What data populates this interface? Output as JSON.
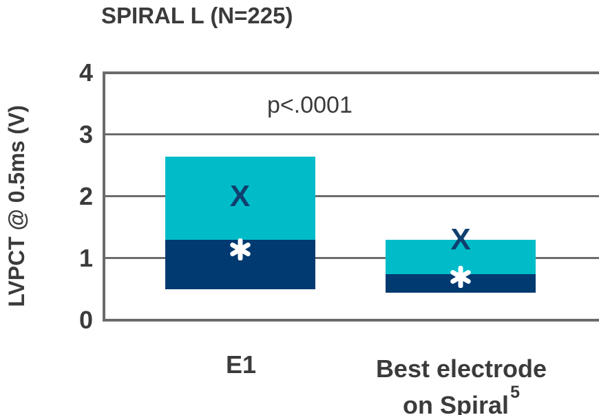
{
  "title": "SPIRAL L (N=225)",
  "y_axis_label": "LVPCT @ 0.5ms (V)",
  "p_annotation": "p<.0001",
  "x_labels": {
    "e1": "E1",
    "best_line1": "Best electrode",
    "best_line2": "on Spiral",
    "best_superscript": "5"
  },
  "colors": {
    "cyan": "#00bcc9",
    "navy": "#003a70",
    "marker_x": "#10406f",
    "marker_star": "#ffffff",
    "grid": "#6b6b6b",
    "text": "#3b3b3b"
  },
  "chart_data": {
    "type": "box",
    "title": "SPIRAL L (N=225)",
    "xlabel": "",
    "ylabel": "LVPCT @ 0.5ms (V)",
    "ylim": [
      0,
      4
    ],
    "yticks": [
      4,
      3,
      2,
      1,
      0
    ],
    "grid": "horizontal",
    "legend": "none",
    "annotation": "p<.0001",
    "categories": [
      "E1",
      "Best electrode on Spiral⁵"
    ],
    "series": [
      {
        "name": "E1",
        "box_low": 0.5,
        "box_high": 2.65,
        "split": 1.3,
        "mean_x": 2.0,
        "median_star": 1.15
      },
      {
        "name": "Best electrode on Spiral⁵",
        "box_low": 0.45,
        "box_high": 1.3,
        "split": 0.75,
        "mean_x": 1.3,
        "median_star": 0.7
      }
    ],
    "marker_legend": {
      "x_symbol": "X",
      "star_symbol": "✱"
    }
  }
}
